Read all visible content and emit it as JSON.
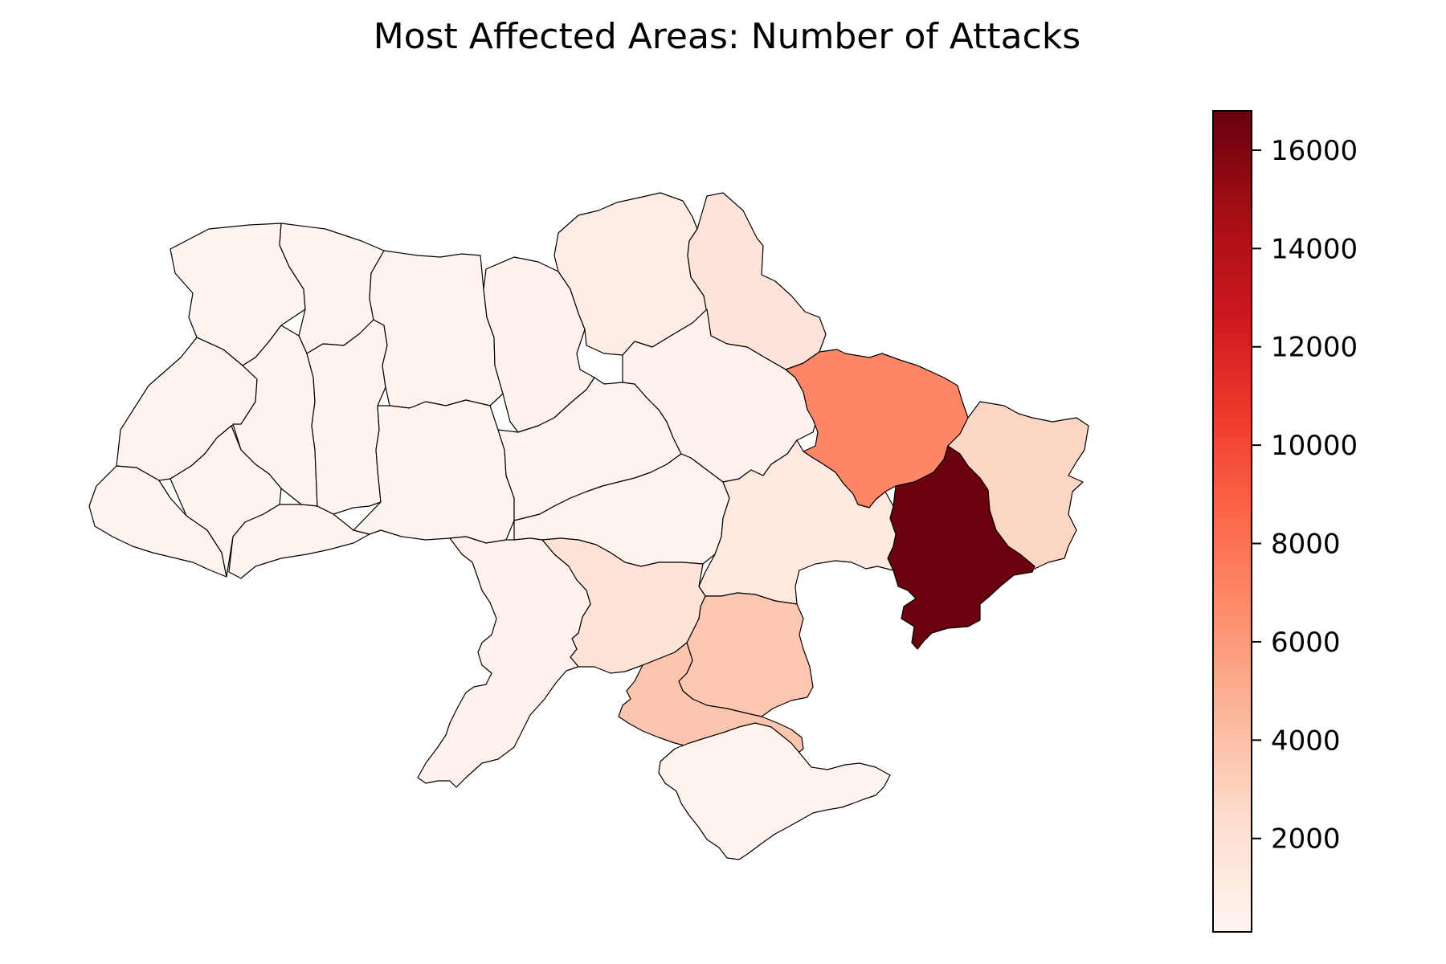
{
  "chart_data": {
    "type": "choropleth",
    "title": "Most Affected Areas: Number of Attacks",
    "colormap": {
      "name": "Reds",
      "min": 100,
      "max": 16800,
      "stops": [
        "#fff5f0",
        "#fee0d2",
        "#fcbba1",
        "#fc9272",
        "#fb6a4a",
        "#ef3b2c",
        "#cb181d",
        "#a50f15",
        "#67000d"
      ]
    },
    "colorbar": {
      "placement": "right",
      "ticks": [
        2000,
        4000,
        6000,
        8000,
        10000,
        12000,
        14000,
        16000
      ],
      "tick_labels": [
        "2000",
        "4000",
        "6000",
        "8000",
        "10000",
        "12000",
        "14000",
        "16000"
      ]
    },
    "regions": [
      {
        "id": "volyn",
        "value": 150
      },
      {
        "id": "rivne",
        "value": 150
      },
      {
        "id": "lviv",
        "value": 250
      },
      {
        "id": "ternopil",
        "value": 150
      },
      {
        "id": "ivano-frankivsk",
        "value": 150
      },
      {
        "id": "zakarpattia",
        "value": 150
      },
      {
        "id": "chernivtsi",
        "value": 150
      },
      {
        "id": "khmelnytskyi",
        "value": 150
      },
      {
        "id": "zhytomyr",
        "value": 250
      },
      {
        "id": "vinnytsia",
        "value": 200
      },
      {
        "id": "kyiv",
        "value": 400
      },
      {
        "id": "chernihiv",
        "value": 900
      },
      {
        "id": "sumy",
        "value": 1800
      },
      {
        "id": "cherkasy",
        "value": 250
      },
      {
        "id": "kirovohrad",
        "value": 300
      },
      {
        "id": "poltava",
        "value": 400
      },
      {
        "id": "kharkiv",
        "value": 7000
      },
      {
        "id": "luhansk",
        "value": 2800
      },
      {
        "id": "donetsk",
        "value": 16700
      },
      {
        "id": "dnipropetrovsk",
        "value": 1300
      },
      {
        "id": "zaporizhzhia",
        "value": 3600
      },
      {
        "id": "mykolaiv",
        "value": 1900
      },
      {
        "id": "kherson",
        "value": 3700
      },
      {
        "id": "odesa",
        "value": 400
      },
      {
        "id": "crimea",
        "value": 300
      }
    ]
  }
}
